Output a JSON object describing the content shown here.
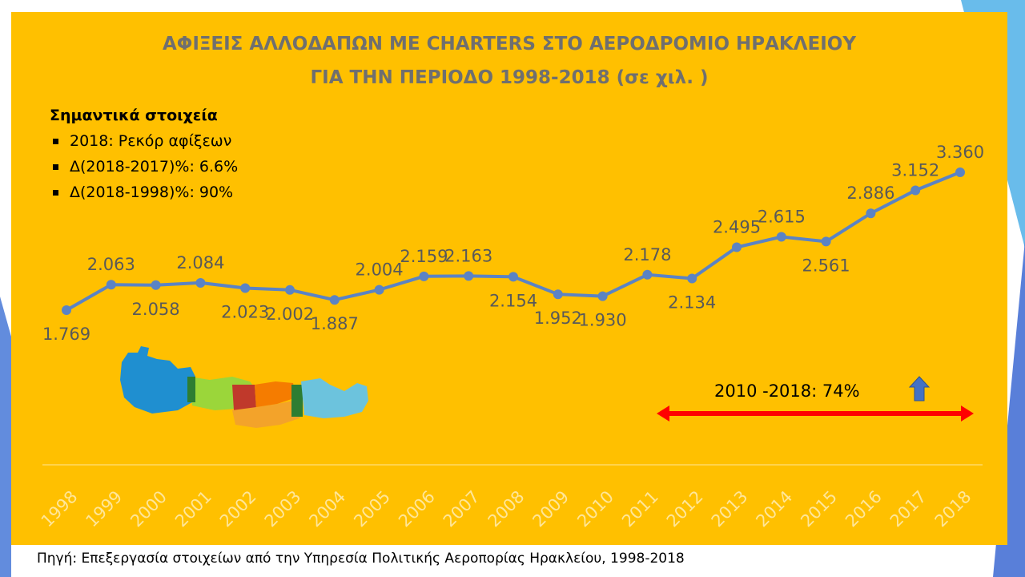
{
  "slide": {
    "title_line1": "ΑΦΙΞΕΙΣ ΑΛΛΟΔΑΠΩΝ ΜΕ CHARTERS ΣΤΟ ΑΕΡΟΔΡΟΜΙΟ ΗΡΑΚΛΕΙΟΥ",
    "title_line2": "ΓΙΑ ΤΗΝ ΠΕΡΙΟΔΟ 1998-2018 (σε χιλ. )",
    "notes": {
      "heading": "Σημαντικά στοιχεία",
      "bullets": [
        "2018: Ρεκόρ αφίξεων",
        "Δ(2018-2017)%: 6.6%",
        "Δ(2018-1998)%: 90%"
      ]
    },
    "growth_annotation": "2010 -2018: 74%",
    "source": "Πηγή: Επεξεργασία στοιχείων από την Υπηρεσία Πολιτικής Αεροπορίας Ηρακλείου, 1998-2018"
  },
  "colors": {
    "panel_background": "#FFC000",
    "line": "#5B83C4",
    "title_text": "#6f6f6f",
    "data_label": "#595959",
    "axis_label": "#ffe699",
    "arrow": "#ff0000",
    "up_arrow": "#4472C4",
    "slide_accent": "#3b6fd4"
  },
  "chart_data": {
    "type": "line",
    "categories": [
      "1998",
      "1999",
      "2000",
      "2001",
      "2002",
      "2003",
      "2004",
      "2005",
      "2006",
      "2007",
      "2008",
      "2009",
      "2010",
      "2011",
      "2012",
      "2013",
      "2014",
      "2015",
      "2016",
      "2017",
      "2018"
    ],
    "values": [
      1769,
      2063,
      2058,
      2084,
      2023,
      2002,
      1887,
      2004,
      2159,
      2163,
      2154,
      1952,
      1930,
      2178,
      2134,
      2495,
      2615,
      2561,
      2886,
      3152,
      3360
    ],
    "value_labels": [
      "1.769",
      "2.063",
      "2.058",
      "2.084",
      "2.023",
      "2.002",
      "1.887",
      "2.004",
      "2.159",
      "2.163",
      "2.154",
      "1.952",
      "1.930",
      "2.178",
      "2.134",
      "2.495",
      "2.615",
      "2.561",
      "2.886",
      "3.152",
      "3.360"
    ],
    "title": "ΑΦΙΞΕΙΣ ΑΛΛΟΔΑΠΩΝ ΜΕ CHARTERS ΣΤΟ ΑΕΡΟΔΡΟΜΙΟ ΗΡΑΚΛΕΙΟΥ ΓΙΑ ΤΗΝ ΠΕΡΙΟΔΟ 1998-2018 (σε χιλ. )",
    "xlabel": "",
    "ylabel": "",
    "y_axis_visible": false,
    "grid": false,
    "legend": "none"
  }
}
